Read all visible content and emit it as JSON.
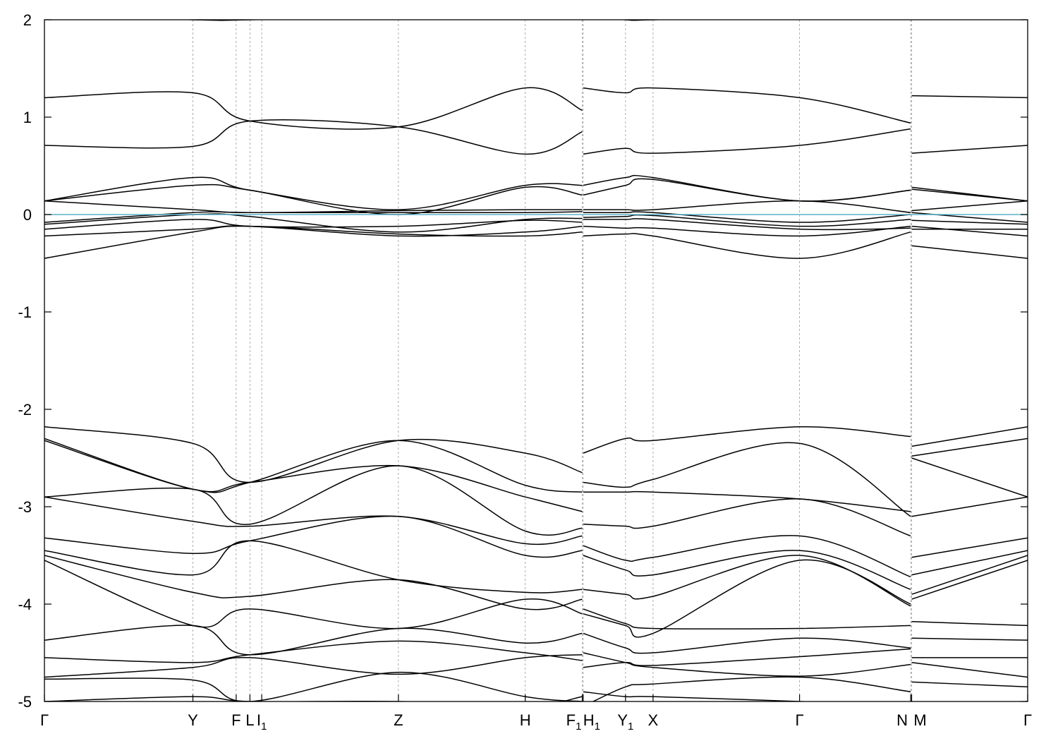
{
  "chart_data": {
    "type": "line",
    "title": "",
    "xlabel": "",
    "ylabel": "",
    "ylim": [
      -5,
      2
    ],
    "yticks": [
      -5,
      -4,
      -3,
      -2,
      -1,
      0,
      1,
      2
    ],
    "grid": "vertical dotted lines at high-symmetry points",
    "fermi_level": 0,
    "fermi_color": "#5ab4c8",
    "band_color": "#000000",
    "kpoints": [
      {
        "pos": 0.0,
        "label": "Γ",
        "sub": ""
      },
      {
        "pos": 0.151,
        "label": "Y",
        "sub": ""
      },
      {
        "pos": 0.195,
        "label": "F",
        "sub": ""
      },
      {
        "pos": 0.209,
        "label": "L",
        "sub": ""
      },
      {
        "pos": 0.221,
        "label": "I",
        "sub": "1"
      },
      {
        "pos": 0.36,
        "label": "Z",
        "sub": ""
      },
      {
        "pos": 0.489,
        "label": "H",
        "sub": ""
      },
      {
        "pos": 0.547,
        "label": "F",
        "sub": "1"
      },
      {
        "pos": 0.548,
        "label": "H",
        "sub": "1"
      },
      {
        "pos": 0.591,
        "label": "Y",
        "sub": "1"
      },
      {
        "pos": 0.619,
        "label": "X",
        "sub": ""
      },
      {
        "pos": 0.768,
        "label": "Γ",
        "sub": ""
      },
      {
        "pos": 0.881,
        "label": "N",
        "sub": ""
      },
      {
        "pos": 0.882,
        "label": "M",
        "sub": ""
      },
      {
        "pos": 1.0,
        "label": "Γ",
        "sub": ""
      }
    ],
    "breaks": [
      0.547,
      0.881
    ],
    "band_columns": [
      0,
      0.151,
      0.209,
      0.36,
      0.489,
      0.547,
      0.548,
      0.591,
      0.619,
      0.768,
      0.881,
      0.882,
      1.0
    ],
    "bands": [
      [
        -5.0,
        -4.95,
        -5.0,
        -5.0,
        -5.05,
        -4.95,
        -4.9,
        -4.95,
        -4.95,
        -5.0,
        -5.05,
        -5.05,
        -5.0
      ],
      [
        -4.77,
        -4.78,
        -5.0,
        -4.7,
        -4.95,
        -5.0,
        -5.05,
        -4.85,
        -4.82,
        -4.75,
        -4.9,
        -4.8,
        -4.85
      ],
      [
        -4.75,
        -4.65,
        -4.55,
        -4.72,
        -4.55,
        -4.52,
        -4.5,
        -4.6,
        -4.65,
        -4.74,
        -4.62,
        -4.6,
        -4.75
      ],
      [
        -4.55,
        -4.6,
        -4.52,
        -4.38,
        -4.5,
        -4.58,
        -4.65,
        -4.6,
        -4.63,
        -4.54,
        -4.46,
        -4.55,
        -4.55
      ],
      [
        -4.37,
        -4.22,
        -4.52,
        -4.25,
        -4.4,
        -4.3,
        -4.3,
        -4.45,
        -4.5,
        -4.35,
        -4.45,
        -4.35,
        -4.37
      ],
      [
        -3.55,
        -4.22,
        -4.05,
        -4.25,
        -3.95,
        -4.1,
        -4.05,
        -4.2,
        -4.25,
        -4.25,
        -4.22,
        -4.18,
        -4.22
      ],
      [
        -3.5,
        -3.88,
        -3.92,
        -3.75,
        -4.05,
        -3.95,
        -4.1,
        -4.22,
        -4.3,
        -3.55,
        -4.0,
        -3.95,
        -3.55
      ],
      [
        -3.45,
        -3.7,
        -3.35,
        -3.75,
        -3.88,
        -3.85,
        -3.85,
        -3.9,
        -3.92,
        -3.5,
        -4.02,
        -3.9,
        -3.5
      ],
      [
        -3.32,
        -3.48,
        -3.35,
        -3.1,
        -3.5,
        -3.45,
        -3.5,
        -3.65,
        -3.7,
        -3.45,
        -3.85,
        -3.7,
        -3.45
      ],
      [
        -2.9,
        -3.15,
        -3.2,
        -3.1,
        -3.38,
        -3.3,
        -3.4,
        -3.55,
        -3.52,
        -3.3,
        -3.72,
        -3.52,
        -3.32
      ],
      [
        -2.9,
        -2.82,
        -3.18,
        -2.58,
        -3.25,
        -3.22,
        -3.18,
        -3.2,
        -3.2,
        -2.92,
        -3.3,
        -3.1,
        -2.9
      ],
      [
        -2.32,
        -2.82,
        -2.75,
        -2.58,
        -2.9,
        -3.05,
        -2.85,
        -2.85,
        -2.85,
        -2.92,
        -3.05,
        -2.5,
        -2.9
      ],
      [
        -2.3,
        -2.82,
        -2.75,
        -2.32,
        -2.78,
        -2.85,
        -2.75,
        -2.8,
        -2.72,
        -2.35,
        -3.1,
        -2.48,
        -2.3
      ],
      [
        -2.18,
        -2.35,
        -2.75,
        -2.32,
        -2.45,
        -2.65,
        -2.45,
        -2.3,
        -2.32,
        -2.18,
        -2.28,
        -2.38,
        -2.18
      ],
      [
        -0.45,
        -0.18,
        -0.12,
        -0.2,
        -0.22,
        -0.18,
        -0.22,
        -0.2,
        -0.22,
        -0.45,
        -0.18,
        -0.32,
        -0.45
      ],
      [
        -0.22,
        -0.15,
        -0.12,
        -0.22,
        -0.18,
        -0.12,
        -0.12,
        -0.14,
        -0.14,
        -0.22,
        -0.12,
        -0.12,
        -0.22
      ],
      [
        -0.15,
        -0.05,
        -0.12,
        -0.12,
        -0.06,
        -0.08,
        -0.05,
        -0.05,
        -0.05,
        -0.15,
        -0.14,
        -0.15,
        -0.15
      ],
      [
        -0.1,
        0.0,
        -0.02,
        -0.18,
        -0.05,
        -0.04,
        -0.03,
        -0.02,
        -0.01,
        -0.12,
        -0.05,
        -0.06,
        -0.1
      ],
      [
        -0.08,
        0.02,
        0.02,
        0.02,
        0.02,
        0.03,
        0.02,
        0.02,
        0.02,
        -0.08,
        0.0,
        0.02,
        -0.08
      ],
      [
        0.14,
        0.05,
        0.02,
        0.04,
        0.05,
        0.05,
        0.05,
        0.05,
        0.05,
        0.14,
        0.02,
        0.04,
        0.14
      ],
      [
        0.14,
        0.3,
        0.25,
        0.0,
        0.28,
        0.2,
        0.2,
        0.3,
        0.36,
        0.14,
        0.25,
        0.26,
        0.14
      ],
      [
        0.14,
        0.38,
        0.25,
        0.05,
        0.3,
        0.3,
        0.3,
        0.38,
        0.38,
        0.14,
        0.25,
        0.28,
        0.14
      ],
      [
        0.71,
        0.7,
        0.96,
        0.9,
        0.62,
        0.85,
        0.62,
        0.68,
        0.63,
        0.71,
        0.88,
        0.63,
        0.71
      ],
      [
        1.2,
        1.25,
        0.96,
        0.9,
        1.3,
        1.07,
        1.3,
        1.25,
        1.3,
        1.2,
        0.94,
        1.22,
        1.2
      ],
      [
        2.05,
        2.0,
        2.0,
        2.05,
        2.05,
        2.05,
        2.05,
        2.0,
        2.0,
        2.05,
        2.05,
        2.05,
        2.05
      ]
    ]
  }
}
